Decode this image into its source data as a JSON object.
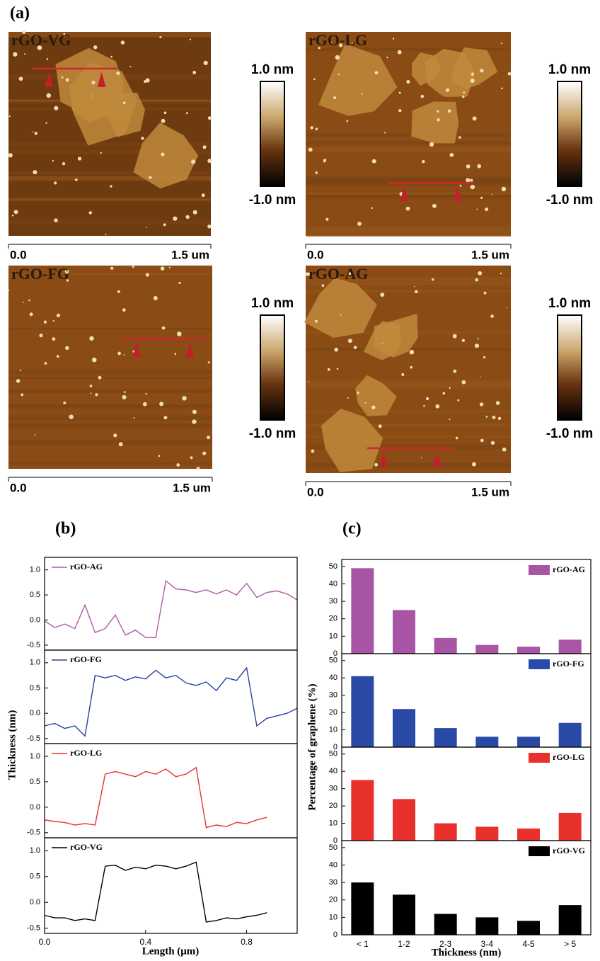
{
  "panel_a": {
    "label": "(a)",
    "images": [
      {
        "name": "rGO-VG",
        "scale_start": "0.0",
        "scale_end": "1.5 um",
        "colorbar_max": "1.0 nm",
        "colorbar_min": "-1.0 nm"
      },
      {
        "name": "rGO-LG",
        "scale_start": "0.0",
        "scale_end": "1.5 um",
        "colorbar_max": "1.0 nm",
        "colorbar_min": "-1.0 nm"
      },
      {
        "name": "rGO-FG",
        "scale_start": "0.0",
        "scale_end": "1.5 um",
        "colorbar_max": "1.0 nm",
        "colorbar_min": "-1.0 nm"
      },
      {
        "name": "rGO-AG",
        "scale_start": "0.0",
        "scale_end": "1.5 um",
        "colorbar_max": "1.0 nm",
        "colorbar_min": "-1.0 nm"
      }
    ]
  },
  "panel_b": {
    "label": "(b)",
    "ylabel": "Thickness (nm)",
    "xlabel": "Length (μm)"
  },
  "panel_c": {
    "label": "(c)",
    "ylabel": "Percentage of graphene (%)",
    "xlabel": "Thickness (nm)"
  },
  "chart_data": [
    {
      "type": "line",
      "x": [
        0,
        0.04,
        0.08,
        0.12,
        0.16,
        0.2,
        0.24,
        0.28,
        0.32,
        0.36,
        0.4,
        0.44,
        0.48,
        0.52,
        0.56,
        0.6,
        0.64,
        0.68,
        0.72,
        0.76,
        0.8,
        0.84,
        0.88,
        0.92,
        0.96,
        1.0
      ],
      "series": [
        {
          "name": "rGO-AG",
          "color": "#b05aa8",
          "values": [
            -0.02,
            -0.15,
            -0.08,
            -0.17,
            0.3,
            -0.25,
            -0.17,
            0.1,
            -0.3,
            -0.2,
            -0.35,
            -0.35,
            0.78,
            0.62,
            0.6,
            0.55,
            0.6,
            0.52,
            0.6,
            0.5,
            0.73,
            0.45,
            0.55,
            0.58,
            0.52,
            0.4
          ]
        }
      ],
      "xlim": [
        0,
        1.0
      ],
      "ylim": [
        -0.6,
        1.25
      ],
      "yticks": [
        -0.5,
        {
          "value": 0,
          "label": "0.0"
        },
        0.5,
        {
          "value": 1,
          "label": "1.0"
        }
      ]
    },
    {
      "type": "line",
      "x": [
        0,
        0.04,
        0.08,
        0.12,
        0.16,
        0.2,
        0.24,
        0.28,
        0.32,
        0.36,
        0.4,
        0.44,
        0.48,
        0.52,
        0.56,
        0.6,
        0.64,
        0.68,
        0.72,
        0.76,
        0.8,
        0.84,
        0.88,
        0.92,
        0.96,
        1.0
      ],
      "series": [
        {
          "name": "rGO-FG",
          "color": "#2b3f9e",
          "values": [
            -0.25,
            -0.2,
            -0.3,
            -0.25,
            -0.45,
            0.75,
            0.7,
            0.75,
            0.65,
            0.72,
            0.68,
            0.85,
            0.7,
            0.75,
            0.6,
            0.55,
            0.62,
            0.45,
            0.7,
            0.65,
            0.9,
            -0.25,
            -0.1,
            -0.05,
            0.0,
            0.1
          ]
        }
      ],
      "xlim": [
        0,
        1.0
      ],
      "ylim": [
        -0.6,
        1.25
      ],
      "yticks": [
        -0.5,
        {
          "value": 0,
          "label": "0.0"
        },
        0.5,
        {
          "value": 1,
          "label": "1.0"
        }
      ]
    },
    {
      "type": "line",
      "x": [
        0,
        0.04,
        0.08,
        0.12,
        0.16,
        0.2,
        0.24,
        0.28,
        0.32,
        0.36,
        0.4,
        0.44,
        0.48,
        0.52,
        0.56,
        0.6,
        0.64,
        0.68,
        0.72,
        0.76,
        0.8,
        0.84,
        0.88
      ],
      "series": [
        {
          "name": "rGO-LG",
          "color": "#e8322b",
          "values": [
            -0.25,
            -0.28,
            -0.3,
            -0.35,
            -0.32,
            -0.35,
            0.65,
            0.7,
            0.65,
            0.6,
            0.7,
            0.65,
            0.75,
            0.6,
            0.65,
            0.78,
            -0.4,
            -0.35,
            -0.38,
            -0.3,
            -0.32,
            -0.25,
            -0.2
          ]
        }
      ],
      "xlim": [
        0,
        1.0
      ],
      "ylim": [
        -0.6,
        1.25
      ],
      "yticks": [
        -0.5,
        {
          "value": 0,
          "label": "0.0"
        },
        0.5,
        {
          "value": 1,
          "label": "1.0"
        }
      ]
    },
    {
      "type": "line",
      "x": [
        0,
        0.04,
        0.08,
        0.12,
        0.16,
        0.2,
        0.24,
        0.28,
        0.32,
        0.36,
        0.4,
        0.44,
        0.48,
        0.52,
        0.56,
        0.6,
        0.64,
        0.68,
        0.72,
        0.76,
        0.8,
        0.84,
        0.88
      ],
      "series": [
        {
          "name": "rGO-VG",
          "color": "#000000",
          "values": [
            -0.25,
            -0.3,
            -0.3,
            -0.35,
            -0.32,
            -0.35,
            0.7,
            0.72,
            0.62,
            0.68,
            0.65,
            0.72,
            0.7,
            0.65,
            0.7,
            0.78,
            -0.38,
            -0.35,
            -0.3,
            -0.32,
            -0.28,
            -0.25,
            -0.2
          ]
        }
      ],
      "xlim": [
        0,
        1.0
      ],
      "ylim": [
        -0.6,
        1.25
      ],
      "yticks": [
        -0.5,
        {
          "value": 0,
          "label": "0.0"
        },
        0.5,
        {
          "value": 1,
          "label": "1.0"
        }
      ],
      "xticks": [
        {
          "value": 0,
          "label": "0.0"
        },
        0.4,
        0.8
      ]
    },
    {
      "type": "bar",
      "categories": [
        null,
        null,
        null,
        null,
        null,
        null
      ],
      "series": [
        {
          "name": "rGO-AG",
          "color": "#a855a6",
          "values": [
            49,
            25,
            9,
            5,
            4,
            8
          ]
        }
      ],
      "ylim": [
        0,
        54
      ],
      "yticks": [
        0,
        10,
        20,
        30,
        40,
        50
      ]
    },
    {
      "type": "bar",
      "categories": [
        null,
        null,
        null,
        null,
        null,
        null
      ],
      "series": [
        {
          "name": "rGO-FG",
          "color": "#2a4aa8",
          "values": [
            41,
            22,
            11,
            6,
            6,
            14
          ]
        }
      ],
      "ylim": [
        0,
        54
      ],
      "yticks": [
        0,
        10,
        20,
        30,
        40,
        50
      ]
    },
    {
      "type": "bar",
      "categories": [
        null,
        null,
        null,
        null,
        null,
        null
      ],
      "series": [
        {
          "name": "rGO-LG",
          "color": "#e8302c",
          "values": [
            35,
            24,
            10,
            8,
            7,
            16
          ]
        }
      ],
      "ylim": [
        0,
        54
      ],
      "yticks": [
        0,
        10,
        20,
        30,
        40,
        50
      ]
    },
    {
      "type": "bar",
      "categories": [
        "< 1",
        "1-2",
        "2-3",
        "3-4",
        "4-5",
        "> 5"
      ],
      "series": [
        {
          "name": "rGO-VG",
          "color": "#000000",
          "values": [
            30,
            23,
            12,
            10,
            8,
            17
          ]
        }
      ],
      "ylim": [
        0,
        54
      ],
      "yticks": [
        0,
        10,
        20,
        30,
        40,
        50
      ]
    }
  ]
}
